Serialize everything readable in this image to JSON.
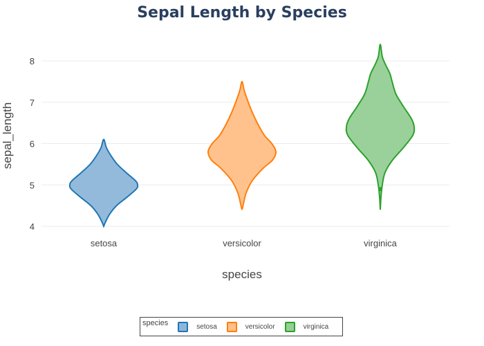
{
  "chart_data": {
    "type": "violin",
    "title": "Sepal Length by Species",
    "xlabel": "species",
    "ylabel": "sepal_length",
    "ylim": [
      3.9,
      8.7
    ],
    "yticks": [
      4,
      5,
      6,
      7,
      8
    ],
    "grid": true,
    "categories": [
      "setosa",
      "versicolor",
      "virginica"
    ],
    "series": [
      {
        "name": "setosa",
        "color": "#1f77b4",
        "fill": "#8eb6d9",
        "min": 4.0,
        "max": 6.1,
        "profile": [
          [
            4.0,
            0.0
          ],
          [
            4.1,
            0.05
          ],
          [
            4.3,
            0.18
          ],
          [
            4.5,
            0.38
          ],
          [
            4.7,
            0.68
          ],
          [
            4.9,
            0.96
          ],
          [
            5.0,
            1.0
          ],
          [
            5.1,
            0.94
          ],
          [
            5.3,
            0.66
          ],
          [
            5.5,
            0.4
          ],
          [
            5.7,
            0.22
          ],
          [
            5.9,
            0.08
          ],
          [
            6.1,
            0.0
          ]
        ]
      },
      {
        "name": "versicolor",
        "color": "#ff7f0e",
        "fill": "#ffbf87",
        "min": 4.4,
        "max": 7.5,
        "profile": [
          [
            4.4,
            0.0
          ],
          [
            4.5,
            0.03
          ],
          [
            4.8,
            0.12
          ],
          [
            5.1,
            0.3
          ],
          [
            5.4,
            0.62
          ],
          [
            5.6,
            0.9
          ],
          [
            5.8,
            1.0
          ],
          [
            6.0,
            0.88
          ],
          [
            6.2,
            0.66
          ],
          [
            6.5,
            0.45
          ],
          [
            6.8,
            0.28
          ],
          [
            7.1,
            0.14
          ],
          [
            7.3,
            0.06
          ],
          [
            7.5,
            0.0
          ]
        ]
      },
      {
        "name": "virginica",
        "color": "#2ca02c",
        "fill": "#95cf95",
        "min": 4.4,
        "max": 8.4,
        "profile": [
          [
            4.4,
            0.0
          ],
          [
            4.7,
            0.02
          ],
          [
            5.0,
            0.06
          ],
          [
            5.3,
            0.14
          ],
          [
            5.6,
            0.36
          ],
          [
            5.9,
            0.68
          ],
          [
            6.2,
            0.96
          ],
          [
            6.4,
            1.0
          ],
          [
            6.6,
            0.92
          ],
          [
            6.9,
            0.68
          ],
          [
            7.2,
            0.46
          ],
          [
            7.5,
            0.35
          ],
          [
            7.7,
            0.28
          ],
          [
            7.9,
            0.16
          ],
          [
            8.1,
            0.06
          ],
          [
            8.4,
            0.0
          ]
        ]
      }
    ],
    "outliers": [
      {
        "series": "virginica",
        "value": 4.9
      }
    ],
    "legend": {
      "title": "species",
      "position": "bottom-center",
      "items": [
        "setosa",
        "versicolor",
        "virginica"
      ]
    }
  }
}
